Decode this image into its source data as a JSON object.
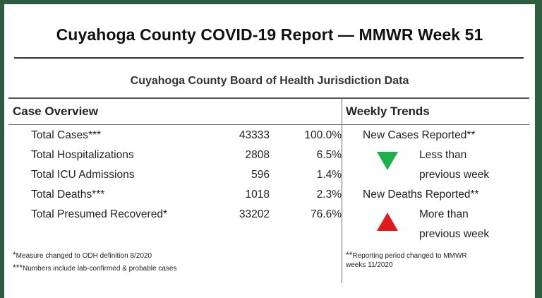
{
  "report": {
    "title": "Cuyahoga County COVID-19 Report — MMWR Week 51",
    "subtitle": "Cuyahoga County Board of Health Jurisdiction Data"
  },
  "case_overview": {
    "heading": "Case Overview",
    "rows": [
      {
        "label": "Total Cases***",
        "count": "43333",
        "percent": "100.0%"
      },
      {
        "label": "Total Hospitalizations",
        "count": "2808",
        "percent": "6.5%"
      },
      {
        "label": "Total ICU Admissions",
        "count": "596",
        "percent": "1.4%"
      },
      {
        "label": "Total Deaths***",
        "count": "1018",
        "percent": "2.3%"
      },
      {
        "label": "Total Presumed Recovered*",
        "count": "33202",
        "percent": "76.6%"
      }
    ],
    "footnotes": [
      {
        "marker": "*",
        "text": "Measure changed to ODH  definition 8/2020"
      },
      {
        "marker": "***",
        "text": "Numbers include lab-confirmed & probable cases"
      }
    ]
  },
  "weekly_trends": {
    "heading": "Weekly Trends",
    "items": [
      {
        "label": "New Cases Reported**",
        "line1": "Less than",
        "line2": "previous week",
        "direction": "down",
        "icon": "triangle-down-icon",
        "color": "#1bb04a"
      },
      {
        "label": "New Deaths Reported**",
        "line1": "More than",
        "line2": "previous week",
        "direction": "up",
        "icon": "triangle-up-icon",
        "color": "#e01b1b"
      }
    ],
    "footnote": {
      "marker": "**",
      "text": "Reporting period changed to MMWR",
      "text2": "weeks 11/2020"
    }
  },
  "colors": {
    "frame": "#2f5b3f",
    "down": "#1bb04a",
    "up": "#e01b1b"
  }
}
